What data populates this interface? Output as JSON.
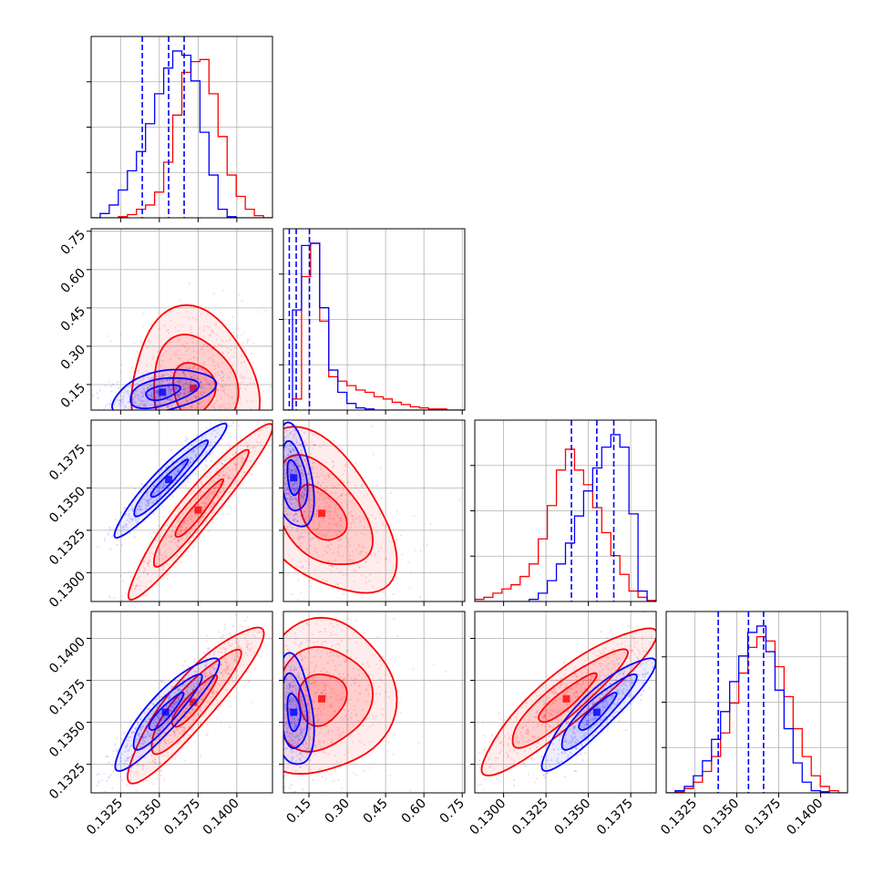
{
  "chart_data": {
    "type": "corner",
    "series": [
      {
        "name": "",
        "color": "#0000ff"
      },
      {
        "name": "",
        "color": "#ff0000"
      }
    ],
    "parameters": [
      {
        "range": [
          0.1306,
          0.1423
        ],
        "ticks": [
          0.1325,
          0.135,
          0.1375,
          0.14
        ],
        "tick_labels": [
          "0.1325",
          "0.1350",
          "0.1375",
          "0.1400"
        ]
      },
      {
        "range": [
          0.05,
          0.76
        ],
        "ticks": [
          0.15,
          0.3,
          0.45,
          0.6,
          0.75
        ],
        "tick_labels": [
          "0.15",
          "0.30",
          "0.45",
          "0.60",
          "0.75"
        ]
      },
      {
        "range": [
          0.1283,
          0.139
        ],
        "ticks": [
          0.13,
          0.1325,
          0.135,
          0.1375
        ],
        "tick_labels": [
          "0.1300",
          "0.1325",
          "0.1350",
          "0.1375"
        ]
      },
      {
        "range": [
          0.1308,
          0.1416
        ],
        "ticks": [
          0.1325,
          0.135,
          0.1375,
          0.14
        ],
        "tick_labels": [
          "0.1325",
          "0.1350",
          "0.1375",
          "0.1400"
        ]
      }
    ],
    "histograms": [
      {
        "param": 0,
        "blue": {
          "edges": [
            0.1306,
            0.1423
          ],
          "counts": [
            0,
            4,
            12,
            26,
            44,
            62,
            88,
            116,
            140,
            156,
            152,
            128,
            80,
            40,
            8,
            1,
            0,
            0,
            0,
            0
          ],
          "quantiles": [
            0.1339,
            0.1356,
            0.1366
          ]
        },
        "red": {
          "edges": [
            0.1306,
            0.1423
          ],
          "counts": [
            0,
            0,
            0,
            1,
            3,
            8,
            12,
            24,
            52,
            96,
            136,
            146,
            148,
            116,
            76,
            40,
            20,
            8,
            2,
            0
          ]
        }
      },
      {
        "param": 1,
        "blue": {
          "edges": [
            0.05,
            0.76
          ],
          "counts": [
            0,
            90,
            148,
            150,
            92,
            36,
            16,
            6,
            2,
            1,
            0,
            0,
            0,
            0,
            0,
            0,
            0,
            0,
            0,
            0
          ],
          "quantiles": [
            0.073,
            0.1,
            0.152
          ]
        },
        "red": {
          "edges": [
            0.05,
            0.76
          ],
          "counts": [
            0,
            10,
            120,
            150,
            80,
            30,
            26,
            22,
            18,
            16,
            12,
            10,
            7,
            5,
            3,
            2,
            1,
            1,
            0,
            0
          ]
        }
      },
      {
        "param": 2,
        "blue": {
          "edges": [
            0.1283,
            0.139
          ],
          "counts": [
            0,
            0,
            0,
            0,
            0,
            0,
            2,
            8,
            20,
            36,
            56,
            82,
            106,
            128,
            148,
            160,
            148,
            84,
            10,
            0
          ],
          "quantiles": [
            0.134,
            0.1355,
            0.1365
          ]
        },
        "red": {
          "edges": [
            0.1283,
            0.139
          ],
          "counts": [
            2,
            4,
            8,
            12,
            16,
            24,
            36,
            60,
            92,
            126,
            146,
            126,
            112,
            90,
            66,
            44,
            26,
            10,
            4,
            1
          ]
        }
      },
      {
        "param": 3,
        "blue": {
          "edges": [
            0.1308,
            0.1416
          ],
          "counts": [
            0,
            2,
            6,
            16,
            30,
            50,
            76,
            104,
            128,
            150,
            156,
            132,
            96,
            60,
            28,
            10,
            2,
            1,
            0,
            0
          ],
          "quantiles": [
            0.1339,
            0.1357,
            0.1366
          ]
        },
        "red": {
          "edges": [
            0.1308,
            0.1416
          ],
          "counts": [
            0,
            1,
            4,
            10,
            20,
            34,
            56,
            84,
            112,
            136,
            146,
            142,
            118,
            90,
            60,
            34,
            16,
            6,
            2,
            0
          ]
        }
      }
    ],
    "pairs": [
      {
        "x": 0,
        "y": 1,
        "blue": {
          "mean": [
            0.1352,
            0.12
          ],
          "sd": [
            0.0013,
            0.035
          ],
          "rho": 0.45
        },
        "red": {
          "mean": [
            0.1372,
            0.135
          ],
          "sd": [
            0.0016,
            0.12
          ],
          "rho": -0.05
        }
      },
      {
        "x": 0,
        "y": 2,
        "blue": {
          "mean": [
            0.1356,
            0.1355
          ],
          "sd": [
            0.0014,
            0.0013
          ],
          "rho": 0.95
        },
        "red": {
          "mean": [
            0.1375,
            0.1337
          ],
          "sd": [
            0.0018,
            0.002
          ],
          "rho": 0.95
        }
      },
      {
        "x": 1,
        "y": 2,
        "blue": {
          "mean": [
            0.09,
            0.1356
          ],
          "sd": [
            0.03,
            0.0012
          ],
          "rho": -0.3
        },
        "red": {
          "mean": [
            0.2,
            0.1335
          ],
          "sd": [
            0.11,
            0.0019
          ],
          "rho": -0.45
        }
      },
      {
        "x": 0,
        "y": 3,
        "blue": {
          "mean": [
            0.1354,
            0.1356
          ],
          "sd": [
            0.0013,
            0.0013
          ],
          "rho": 0.9
        },
        "red": {
          "mean": [
            0.1372,
            0.1362
          ],
          "sd": [
            0.0017,
            0.0018
          ],
          "rho": 0.9
        }
      },
      {
        "x": 1,
        "y": 3,
        "blue": {
          "mean": [
            0.09,
            0.1356
          ],
          "sd": [
            0.03,
            0.0013
          ],
          "rho": -0.2
        },
        "red": {
          "mean": [
            0.2,
            0.1364
          ],
          "sd": [
            0.11,
            0.0018
          ],
          "rho": 0.1
        }
      },
      {
        "x": 2,
        "y": 3,
        "blue": {
          "mean": [
            0.1355,
            0.1356
          ],
          "sd": [
            0.0013,
            0.0013
          ],
          "rho": 0.9
        },
        "red": {
          "mean": [
            0.1337,
            0.1364
          ],
          "sd": [
            0.002,
            0.0017
          ],
          "rho": 0.9
        }
      }
    ],
    "grid": true,
    "contour_levels_sigma": [
      1,
      2,
      3
    ]
  }
}
